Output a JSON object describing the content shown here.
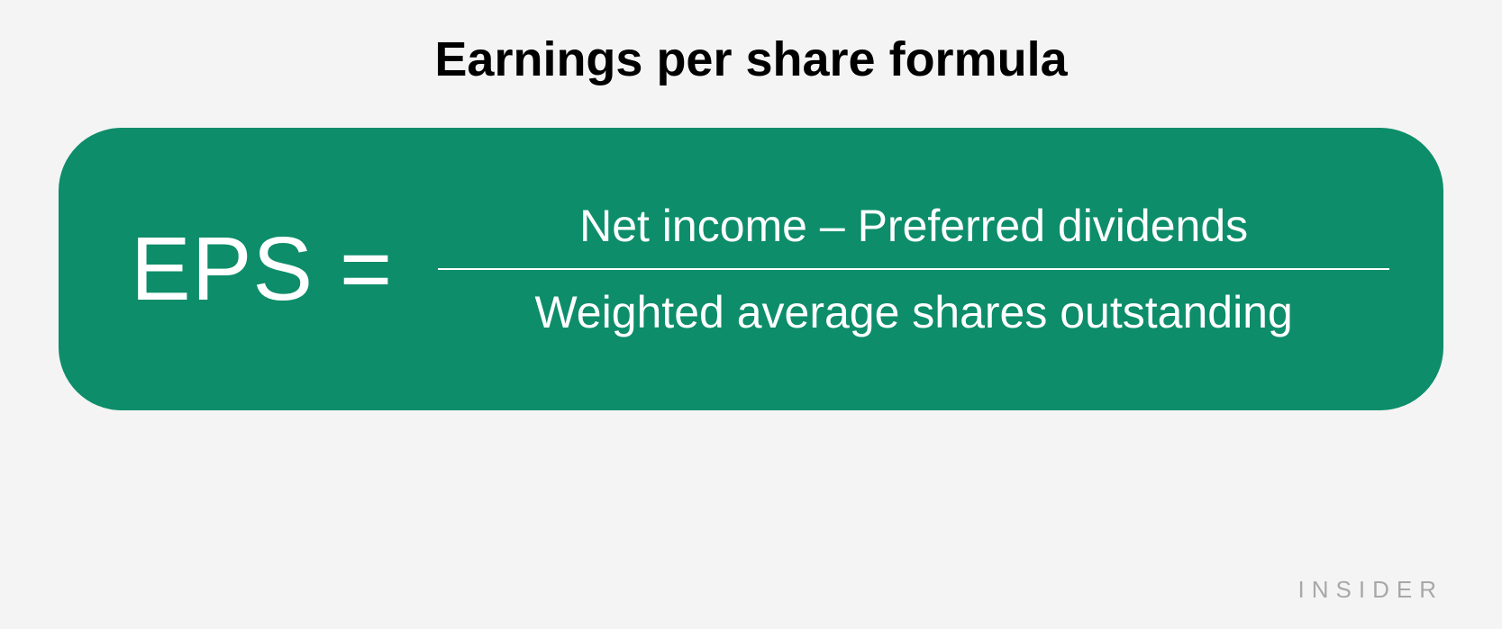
{
  "infographic": {
    "type": "formula",
    "title": "Earnings per share formula",
    "title_fontsize": 54,
    "title_color": "#000000",
    "title_weight": 700,
    "background_color": "#f4f4f4",
    "card": {
      "background_color": "#0d8d6a",
      "border_radius": 70,
      "text_color": "#ffffff"
    },
    "formula": {
      "left_side": "EPS =",
      "left_fontsize": 100,
      "numerator": "Net income – Preferred dividends",
      "denominator": "Weighted average shares outstanding",
      "fraction_fontsize": 50,
      "fraction_line_color": "#ffffff"
    },
    "attribution": {
      "text": "INSIDER",
      "color": "#a8a8a8",
      "fontsize": 26,
      "letter_spacing": 8
    }
  }
}
